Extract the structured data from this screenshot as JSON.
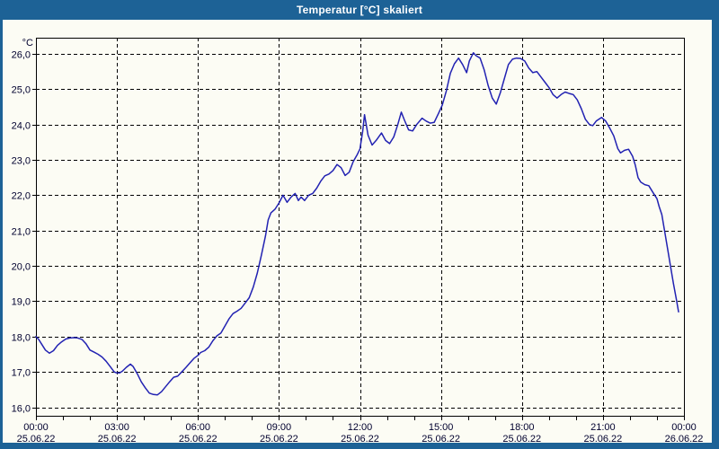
{
  "window": {
    "title": "Temperatur [°C] skaliert"
  },
  "colors": {
    "frame_blue": "#1d6296",
    "chart_background": "#fcfcf4",
    "line_color": "#2222b2",
    "grid_color": "#000000",
    "label_color": "#00002e",
    "title_text": "#ffffff"
  },
  "chart_data": {
    "type": "line",
    "title": "Temperatur [°C] skaliert",
    "series_name": "Temperatur",
    "unit_label": "°C",
    "ylabel": "°C",
    "xlabel": "",
    "ylim": [
      16.0,
      26.0
    ],
    "xlim_hours": [
      0,
      24
    ],
    "grid": "dashed",
    "legend": "none",
    "y_ticks": [
      {
        "label": "26,0",
        "value": 26.0
      },
      {
        "label": "25,0",
        "value": 25.0
      },
      {
        "label": "24,0",
        "value": 24.0
      },
      {
        "label": "23,0",
        "value": 23.0
      },
      {
        "label": "22,0",
        "value": 22.0
      },
      {
        "label": "21,0",
        "value": 21.0
      },
      {
        "label": "20,0",
        "value": 20.0
      },
      {
        "label": "19,0",
        "value": 19.0
      },
      {
        "label": "18,0",
        "value": 18.0
      },
      {
        "label": "17,0",
        "value": 17.0
      },
      {
        "label": "16,0",
        "value": 16.0
      }
    ],
    "x_ticks": [
      {
        "time": "00:00",
        "date": "25.06.22",
        "hour": 0
      },
      {
        "time": "03:00",
        "date": "25.06.22",
        "hour": 3
      },
      {
        "time": "06:00",
        "date": "25.06.22",
        "hour": 6
      },
      {
        "time": "09:00",
        "date": "25.06.22",
        "hour": 9
      },
      {
        "time": "12:00",
        "date": "25.06.22",
        "hour": 12
      },
      {
        "time": "15:00",
        "date": "25.06.22",
        "hour": 15
      },
      {
        "time": "18:00",
        "date": "25.06.22",
        "hour": 18
      },
      {
        "time": "21:00",
        "date": "25.06.22",
        "hour": 21
      },
      {
        "time": "00:00",
        "date": "26.06.22",
        "hour": 24
      }
    ],
    "minor_tick_every_hours": 1,
    "points_hour_temp": [
      [
        0.0,
        18.0
      ],
      [
        0.1,
        17.92
      ],
      [
        0.2,
        17.8
      ],
      [
        0.35,
        17.62
      ],
      [
        0.5,
        17.53
      ],
      [
        0.65,
        17.6
      ],
      [
        0.8,
        17.75
      ],
      [
        0.95,
        17.85
      ],
      [
        1.1,
        17.93
      ],
      [
        1.25,
        17.96
      ],
      [
        1.4,
        17.97
      ],
      [
        1.55,
        17.96
      ],
      [
        1.7,
        17.92
      ],
      [
        1.85,
        17.8
      ],
      [
        2.0,
        17.62
      ],
      [
        2.15,
        17.56
      ],
      [
        2.3,
        17.5
      ],
      [
        2.45,
        17.42
      ],
      [
        2.6,
        17.3
      ],
      [
        2.75,
        17.15
      ],
      [
        2.9,
        17.0
      ],
      [
        3.0,
        16.97
      ],
      [
        3.1,
        16.97
      ],
      [
        3.2,
        17.02
      ],
      [
        3.35,
        17.13
      ],
      [
        3.5,
        17.22
      ],
      [
        3.6,
        17.15
      ],
      [
        3.75,
        16.95
      ],
      [
        3.9,
        16.72
      ],
      [
        4.05,
        16.55
      ],
      [
        4.2,
        16.4
      ],
      [
        4.35,
        16.36
      ],
      [
        4.5,
        16.35
      ],
      [
        4.65,
        16.44
      ],
      [
        4.8,
        16.58
      ],
      [
        4.95,
        16.72
      ],
      [
        5.1,
        16.85
      ],
      [
        5.25,
        16.88
      ],
      [
        5.4,
        17.0
      ],
      [
        5.55,
        17.12
      ],
      [
        5.7,
        17.25
      ],
      [
        5.85,
        17.38
      ],
      [
        6.0,
        17.47
      ],
      [
        6.1,
        17.55
      ],
      [
        6.25,
        17.6
      ],
      [
        6.4,
        17.7
      ],
      [
        6.55,
        17.88
      ],
      [
        6.7,
        18.02
      ],
      [
        6.85,
        18.1
      ],
      [
        7.0,
        18.3
      ],
      [
        7.15,
        18.5
      ],
      [
        7.3,
        18.65
      ],
      [
        7.45,
        18.72
      ],
      [
        7.6,
        18.8
      ],
      [
        7.75,
        18.95
      ],
      [
        7.9,
        19.1
      ],
      [
        8.05,
        19.4
      ],
      [
        8.2,
        19.8
      ],
      [
        8.35,
        20.3
      ],
      [
        8.5,
        20.85
      ],
      [
        8.6,
        21.3
      ],
      [
        8.7,
        21.5
      ],
      [
        8.85,
        21.6
      ],
      [
        9.0,
        21.78
      ],
      [
        9.15,
        22.0
      ],
      [
        9.3,
        21.8
      ],
      [
        9.45,
        21.95
      ],
      [
        9.6,
        22.05
      ],
      [
        9.72,
        21.85
      ],
      [
        9.82,
        21.95
      ],
      [
        9.95,
        21.85
      ],
      [
        10.1,
        22.0
      ],
      [
        10.25,
        22.05
      ],
      [
        10.4,
        22.2
      ],
      [
        10.55,
        22.4
      ],
      [
        10.7,
        22.55
      ],
      [
        10.85,
        22.6
      ],
      [
        11.0,
        22.7
      ],
      [
        11.15,
        22.87
      ],
      [
        11.3,
        22.78
      ],
      [
        11.45,
        22.56
      ],
      [
        11.6,
        22.65
      ],
      [
        11.75,
        22.95
      ],
      [
        11.9,
        23.15
      ],
      [
        12.0,
        23.31
      ],
      [
        12.1,
        23.8
      ],
      [
        12.17,
        24.28
      ],
      [
        12.3,
        23.7
      ],
      [
        12.45,
        23.42
      ],
      [
        12.6,
        23.55
      ],
      [
        12.8,
        23.76
      ],
      [
        12.95,
        23.55
      ],
      [
        13.1,
        23.46
      ],
      [
        13.25,
        23.65
      ],
      [
        13.4,
        24.0
      ],
      [
        13.53,
        24.35
      ],
      [
        13.65,
        24.12
      ],
      [
        13.8,
        23.85
      ],
      [
        13.95,
        23.82
      ],
      [
        14.1,
        24.0
      ],
      [
        14.3,
        24.18
      ],
      [
        14.45,
        24.1
      ],
      [
        14.6,
        24.04
      ],
      [
        14.75,
        24.06
      ],
      [
        14.9,
        24.3
      ],
      [
        15.05,
        24.55
      ],
      [
        15.2,
        24.95
      ],
      [
        15.35,
        25.45
      ],
      [
        15.5,
        25.72
      ],
      [
        15.65,
        25.88
      ],
      [
        15.8,
        25.7
      ],
      [
        15.95,
        25.47
      ],
      [
        16.05,
        25.8
      ],
      [
        16.2,
        26.03
      ],
      [
        16.3,
        25.95
      ],
      [
        16.45,
        25.88
      ],
      [
        16.6,
        25.55
      ],
      [
        16.75,
        25.1
      ],
      [
        16.9,
        24.75
      ],
      [
        17.05,
        24.58
      ],
      [
        17.2,
        24.9
      ],
      [
        17.35,
        25.3
      ],
      [
        17.5,
        25.7
      ],
      [
        17.65,
        25.85
      ],
      [
        17.8,
        25.88
      ],
      [
        17.95,
        25.87
      ],
      [
        18.1,
        25.8
      ],
      [
        18.25,
        25.6
      ],
      [
        18.4,
        25.47
      ],
      [
        18.55,
        25.5
      ],
      [
        18.7,
        25.35
      ],
      [
        18.85,
        25.2
      ],
      [
        19.0,
        25.05
      ],
      [
        19.15,
        24.85
      ],
      [
        19.3,
        24.75
      ],
      [
        19.45,
        24.85
      ],
      [
        19.6,
        24.92
      ],
      [
        19.75,
        24.88
      ],
      [
        19.9,
        24.85
      ],
      [
        20.05,
        24.7
      ],
      [
        20.2,
        24.45
      ],
      [
        20.35,
        24.15
      ],
      [
        20.5,
        24.0
      ],
      [
        20.62,
        23.97
      ],
      [
        20.75,
        24.1
      ],
      [
        20.95,
        24.2
      ],
      [
        21.1,
        24.1
      ],
      [
        21.25,
        23.9
      ],
      [
        21.4,
        23.68
      ],
      [
        21.55,
        23.32
      ],
      [
        21.65,
        23.2
      ],
      [
        21.8,
        23.27
      ],
      [
        21.95,
        23.3
      ],
      [
        22.1,
        23.1
      ],
      [
        22.2,
        22.85
      ],
      [
        22.3,
        22.5
      ],
      [
        22.4,
        22.37
      ],
      [
        22.55,
        22.3
      ],
      [
        22.7,
        22.27
      ],
      [
        22.85,
        22.08
      ],
      [
        23.0,
        21.9
      ],
      [
        23.08,
        21.68
      ],
      [
        23.18,
        21.45
      ],
      [
        23.28,
        21.0
      ],
      [
        23.39,
        20.5
      ],
      [
        23.5,
        20.0
      ],
      [
        23.61,
        19.5
      ],
      [
        23.72,
        19.05
      ],
      [
        23.8,
        18.7
      ]
    ]
  }
}
